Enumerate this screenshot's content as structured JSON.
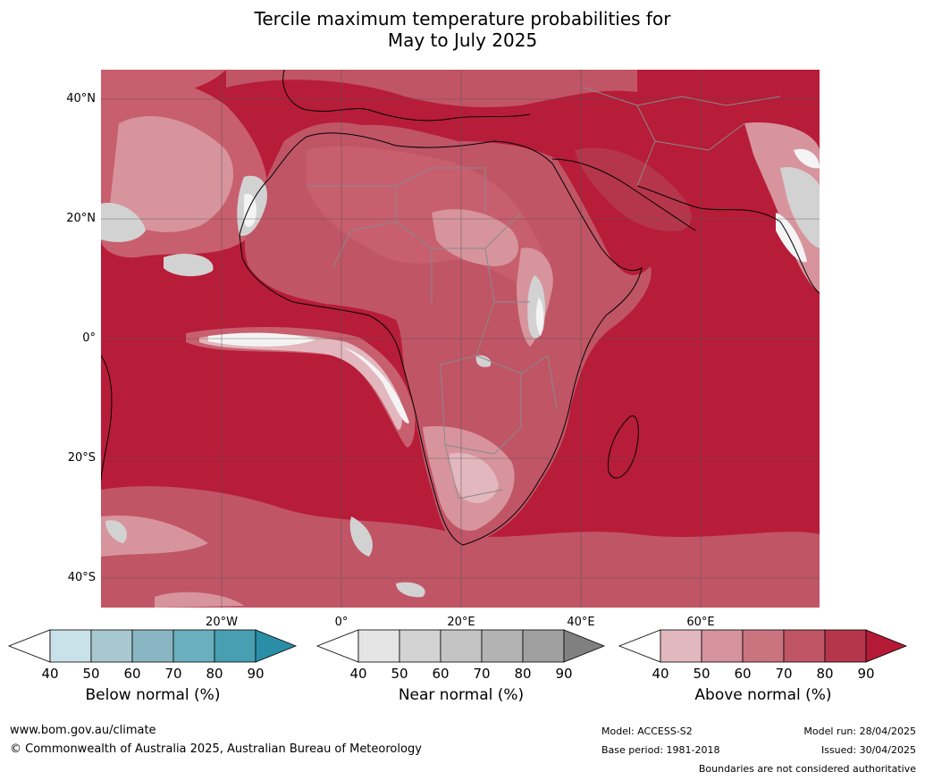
{
  "title_line1": "Tercile maximum temperature probabilities for",
  "title_line2": "May to July 2025",
  "lat_labels": [
    "40°N",
    "20°N",
    "0°",
    "20°S",
    "40°S"
  ],
  "lon_labels": [
    "20°W",
    "0°",
    "20°E",
    "40°E",
    "60°E"
  ],
  "colorbars": [
    {
      "label": "Below normal (%)",
      "ticks": [
        "40",
        "50",
        "60",
        "70",
        "80",
        "90"
      ],
      "colors": [
        "#c9e1e8",
        "#a8c8cf",
        "#89b6c2",
        "#6aafbe",
        "#479fb1"
      ],
      "low": "#ffffff",
      "high": "#2a8ea6"
    },
    {
      "label": "Near normal (%)",
      "ticks": [
        "40",
        "50",
        "60",
        "70",
        "80",
        "90"
      ],
      "colors": [
        "#e5e5e5",
        "#d3d3d3",
        "#c4c4c4",
        "#b3b3b3",
        "#a0a0a0"
      ],
      "low": "#ffffff",
      "high": "#808080"
    },
    {
      "label": "Above normal (%)",
      "ticks": [
        "40",
        "50",
        "60",
        "70",
        "80",
        "90"
      ],
      "colors": [
        "#e2b8bf",
        "#d4939d",
        "#ca7480",
        "#c05566",
        "#b5364b"
      ],
      "low": "#ffffff",
      "high": "#b41a35"
    }
  ],
  "footer": {
    "url": "www.bom.gov.au/climate",
    "copyright": "© Commonwealth of Australia 2025, Australian Bureau of Meteorology",
    "model": "Model: ACCESS-S2",
    "base_period": "Base period: 1981-2018",
    "model_run": "Model run: 28/04/2025",
    "issued": "Issued: 30/04/2025",
    "boundaries": "Boundaries are not considered authoritative"
  },
  "map_colors": {
    "ocean_high": "#b71c38",
    "above_80": "#bf3c51",
    "above_70": "#c85f6e",
    "above_60": "#d7949d",
    "above_50": "#e3b7be",
    "near": "#d2d2d2",
    "white": "#f4f4f4",
    "coast": "#000000",
    "border": "#8a8a8a",
    "grid": "#555555"
  }
}
